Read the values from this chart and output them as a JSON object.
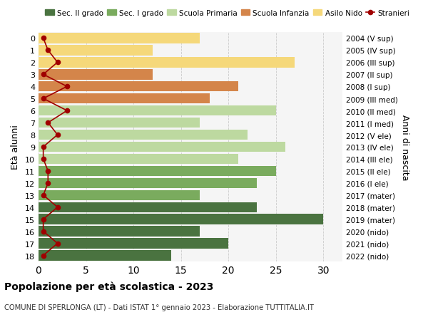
{
  "ages": [
    18,
    17,
    16,
    15,
    14,
    13,
    12,
    11,
    10,
    9,
    8,
    7,
    6,
    5,
    4,
    3,
    2,
    1,
    0
  ],
  "years": [
    "2004 (V sup)",
    "2005 (IV sup)",
    "2006 (III sup)",
    "2007 (II sup)",
    "2008 (I sup)",
    "2009 (III med)",
    "2010 (II med)",
    "2011 (I med)",
    "2012 (V ele)",
    "2013 (IV ele)",
    "2014 (III ele)",
    "2015 (II ele)",
    "2016 (I ele)",
    "2017 (mater)",
    "2018 (mater)",
    "2019 (mater)",
    "2020 (nido)",
    "2021 (nido)",
    "2022 (nido)"
  ],
  "bar_values": [
    14,
    20,
    17,
    30,
    23,
    17,
    23,
    25,
    21,
    26,
    22,
    17,
    25,
    18,
    21,
    12,
    27,
    12,
    17
  ],
  "bar_colors": [
    "#4a7340",
    "#4a7340",
    "#4a7340",
    "#4a7340",
    "#4a7340",
    "#7aab5e",
    "#7aab5e",
    "#7aab5e",
    "#bdd9a0",
    "#bdd9a0",
    "#bdd9a0",
    "#bdd9a0",
    "#bdd9a0",
    "#d4854a",
    "#d4854a",
    "#d4854a",
    "#f5d87a",
    "#f5d87a",
    "#f5d87a"
  ],
  "stranieri_values": [
    0.5,
    2.0,
    0.5,
    0.5,
    2.0,
    0.5,
    1.0,
    1.0,
    0.5,
    0.5,
    2.0,
    1.0,
    3.0,
    0.5,
    3.0,
    0.5,
    2.0,
    1.0,
    0.5
  ],
  "stranieri_color": "#a00000",
  "title_bold": "Popolazione per età scolastica - 2023",
  "subtitle": "COMUNE DI SPERLONGA (LT) - Dati ISTAT 1° gennaio 2023 - Elaborazione TUTTITALIA.IT",
  "ylabel": "Età alunni",
  "right_label": "Anni di nascita",
  "xlim": [
    0,
    32
  ],
  "xticks": [
    0,
    5,
    10,
    15,
    20,
    25,
    30
  ],
  "background_color": "#ffffff",
  "grid_color": "#cccccc",
  "legend_colors": {
    "Sec. II grado": "#4a7340",
    "Sec. I grado": "#7aab5e",
    "Scuola Primaria": "#bdd9a0",
    "Scuola Infanzia": "#d4854a",
    "Asilo Nido": "#f5d87a",
    "Stranieri": "#a00000"
  }
}
